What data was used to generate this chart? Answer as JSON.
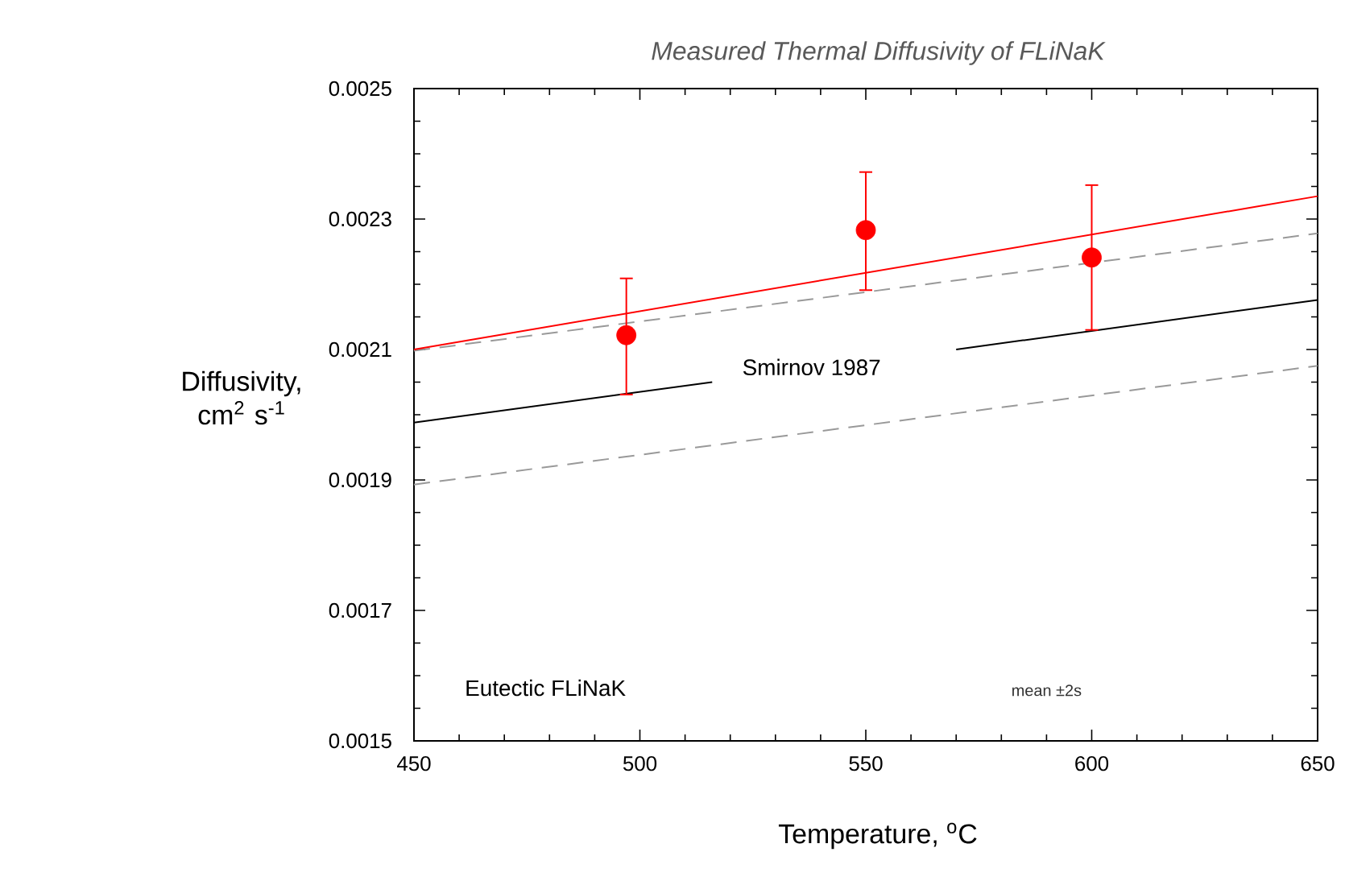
{
  "chart_data": {
    "type": "scatter",
    "title": "Measured Thermal Diffusivity of FLiNaK",
    "xlabel": "Temperature, $^{o}$C",
    "ylabel": "Diffusivity, cm$^{2}$ s$^{-1}$",
    "xlim": [
      450,
      650
    ],
    "xticks": [
      450,
      500,
      550,
      600,
      650
    ],
    "ylim": [
      0.0015,
      0.0025
    ],
    "yticks": [
      0.0015,
      0.0017,
      0.0019,
      0.0021,
      0.0023,
      0.0025
    ],
    "grid": false,
    "series": [
      {
        "type": "line",
        "color": "#999999",
        "line_style": "dashed",
        "x": [
          450,
          650
        ],
        "values": [
          0.002098,
          0.002278
        ]
      },
      {
        "type": "line",
        "color": "#999999",
        "line_style": "dashed",
        "x": [
          450,
          650
        ],
        "values": [
          0.001893,
          0.002075
        ]
      },
      {
        "type": "line",
        "color": "#000000",
        "line_style": "solid",
        "x": [
          450,
          516,
          543,
          570,
          650
        ],
        "values": [
          0.001988,
          0.00205,
          null,
          0.0021,
          0.002176
        ]
      },
      {
        "type": "line",
        "color": "#ff0000",
        "line_style": "solid",
        "x": [
          450,
          650
        ],
        "values": [
          0.0021,
          0.002335
        ]
      },
      {
        "color": "#ff0000",
        "marker": "circle",
        "x": [
          497,
          550,
          600
        ],
        "values": [
          0.002122,
          0.002283,
          0.002241
        ],
        "errors": [
          [
            0.002031,
            0.002209
          ],
          [
            0.002191,
            0.002372
          ],
          [
            0.00213,
            0.002352
          ]
        ]
      }
    ],
    "annotations": [
      "Smirnov 1987",
      "Eutectic FLiNaK",
      "mean ±2s"
    ]
  }
}
